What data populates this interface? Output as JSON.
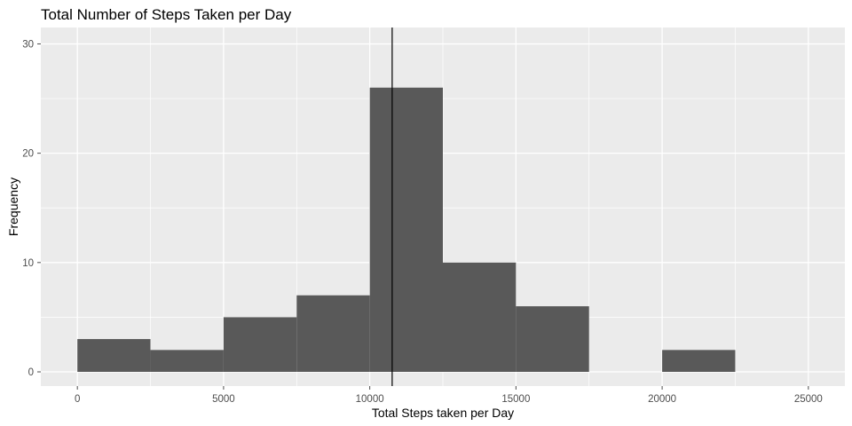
{
  "chart_data": {
    "type": "bar",
    "subtype": "histogram",
    "title": "Total Number of Steps Taken per Day",
    "xlabel": "Total Steps taken per Day",
    "ylabel": "Frequency",
    "xlim": [
      -1250,
      26250
    ],
    "ylim": [
      -1.3,
      31.5
    ],
    "x_ticks": [
      0,
      5000,
      10000,
      15000,
      20000,
      25000
    ],
    "y_ticks": [
      0,
      10,
      20,
      30
    ],
    "bin_width": 2500,
    "bins": [
      {
        "start": 0,
        "end": 2500,
        "count": 3
      },
      {
        "start": 2500,
        "end": 5000,
        "count": 2
      },
      {
        "start": 5000,
        "end": 7500,
        "count": 5
      },
      {
        "start": 7500,
        "end": 10000,
        "count": 7
      },
      {
        "start": 10000,
        "end": 12500,
        "count": 26
      },
      {
        "start": 12500,
        "end": 15000,
        "count": 10
      },
      {
        "start": 15000,
        "end": 17500,
        "count": 6
      },
      {
        "start": 17500,
        "end": 20000,
        "count": 0
      },
      {
        "start": 20000,
        "end": 22500,
        "count": 2
      }
    ],
    "vline": {
      "x": 10766
    },
    "grid": true,
    "legend": "none",
    "colors": {
      "panel": "#ebebeb",
      "grid": "#ffffff",
      "bar": "#595959",
      "vline": "#000000",
      "ticks": "#4d4d4d"
    }
  }
}
